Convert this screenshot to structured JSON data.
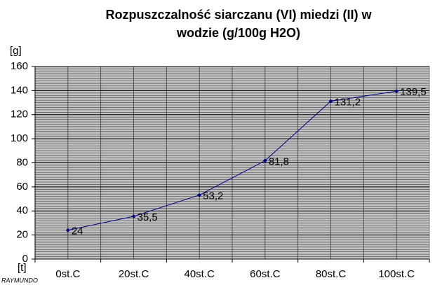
{
  "chart_data": {
    "type": "line",
    "title_lines": [
      "Rozpuszczalność siarczanu (VI) miedzi (II) w",
      "wodzie (g/100g H2O)"
    ],
    "y_label": "[g]",
    "x_label": "[t]",
    "annotation": "RAYMUNDO",
    "categories": [
      "0st.C",
      "20st.C",
      "40st.C",
      "60st.C",
      "80st.C",
      "100st.C"
    ],
    "series": [
      {
        "color": "#000080",
        "values": [
          24,
          35.5,
          53.2,
          81.8,
          131.2,
          139.5
        ],
        "value_labels": [
          "24",
          "35,5",
          "53,2",
          "81,8",
          "131,2",
          "139,5"
        ]
      }
    ],
    "ylim": [
      0,
      160
    ],
    "yticks": [
      0,
      20,
      40,
      60,
      80,
      100,
      120,
      140,
      160
    ],
    "grid": true
  }
}
